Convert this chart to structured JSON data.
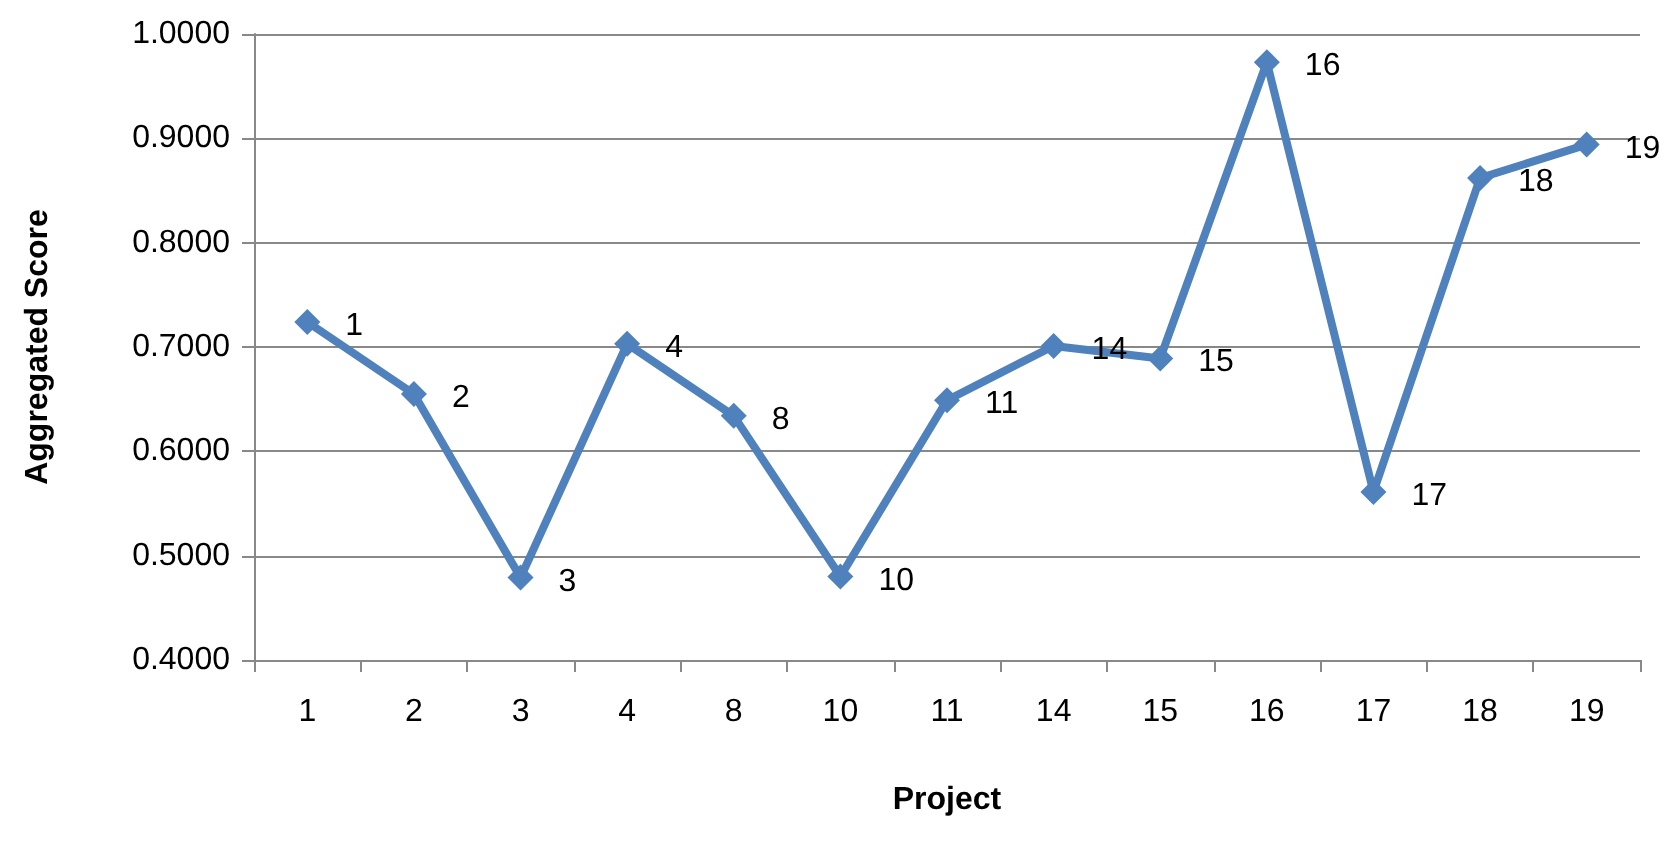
{
  "chart_data": {
    "type": "line",
    "xlabel": "Project",
    "ylabel": "Aggregated Score",
    "categories": [
      "1",
      "2",
      "3",
      "4",
      "8",
      "10",
      "11",
      "14",
      "15",
      "16",
      "17",
      "18",
      "19"
    ],
    "series": [
      {
        "color": "#4f81bd",
        "values": [
          0.724,
          0.655,
          0.479,
          0.703,
          0.634,
          0.48,
          0.649,
          0.701,
          0.689,
          0.973,
          0.561,
          0.862,
          0.894
        ]
      }
    ],
    "ylim": [
      0.4,
      1.0
    ],
    "yticks": [
      {
        "value": 0.4,
        "label": "0.4000"
      },
      {
        "value": 0.5,
        "label": "0.5000"
      },
      {
        "value": 0.6,
        "label": "0.6000"
      },
      {
        "value": 0.7,
        "label": "0.7000"
      },
      {
        "value": 0.8,
        "label": "0.8000"
      },
      {
        "value": 0.9,
        "label": "0.9000"
      },
      {
        "value": 1.0,
        "label": "1.0000"
      }
    ],
    "grid": "y",
    "marker": "diamond",
    "line_style": "solid",
    "annotations": [
      {
        "text": "1",
        "x": "1",
        "y": 0.724
      },
      {
        "text": "2",
        "x": "2",
        "y": 0.655
      },
      {
        "text": "3",
        "x": "3",
        "y": 0.479
      },
      {
        "text": "4",
        "x": "4",
        "y": 0.703
      },
      {
        "text": "8",
        "x": "8",
        "y": 0.634
      },
      {
        "text": "10",
        "x": "10",
        "y": 0.48
      },
      {
        "text": "11",
        "x": "11",
        "y": 0.649
      },
      {
        "text": "14",
        "x": "14",
        "y": 0.701
      },
      {
        "text": "15",
        "x": "15",
        "y": 0.689
      },
      {
        "text": "16",
        "x": "16",
        "y": 0.973
      },
      {
        "text": "17",
        "x": "17",
        "y": 0.561
      },
      {
        "text": "18",
        "x": "18",
        "y": 0.862
      },
      {
        "text": "19",
        "x": "19",
        "y": 0.894
      }
    ]
  }
}
